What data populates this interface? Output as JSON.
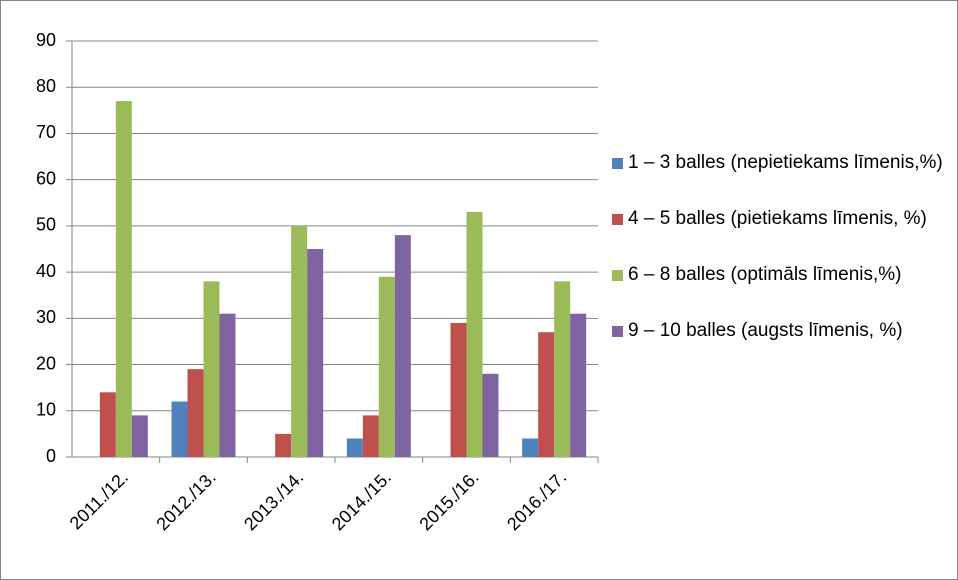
{
  "chart_data": {
    "type": "bar",
    "categories": [
      "2011./12.",
      "2012./13.",
      "2013./14.",
      "2014./15.",
      "2015./16.",
      "2016./17."
    ],
    "series": [
      {
        "name": "1 – 3 balles (nepietiekams līmenis,%)",
        "color": "#4f81bd",
        "values": [
          0,
          12,
          0,
          4,
          0,
          4
        ]
      },
      {
        "name": "4 – 5 balles (pietiekams līmenis, %)",
        "color": "#c0504d",
        "values": [
          14,
          19,
          5,
          9,
          29,
          27
        ]
      },
      {
        "name": "6 – 8 balles (optimāls līmenis,%)",
        "color": "#9bbb59",
        "values": [
          77,
          38,
          50,
          39,
          53,
          38
        ]
      },
      {
        "name": "9 – 10 balles (augsts līmenis, %)",
        "color": "#8064a2",
        "values": [
          9,
          31,
          45,
          48,
          18,
          31
        ]
      }
    ],
    "ylim": [
      0,
      90
    ],
    "yticks": [
      0,
      10,
      20,
      30,
      40,
      50,
      60,
      70,
      80,
      90
    ],
    "grid": true,
    "legend": "right"
  }
}
